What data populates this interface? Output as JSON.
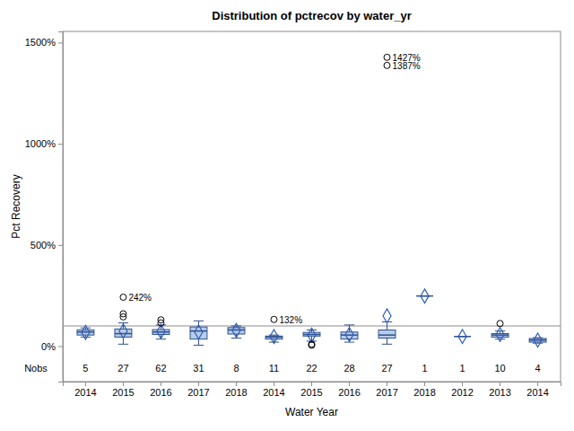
{
  "chart_data": {
    "type": "box",
    "title": "Distribution of pctrecov by water_yr",
    "x_label": "Water Year",
    "y_label": "Pct Recovery",
    "categories": [
      "2014",
      "2015",
      "2016",
      "2017",
      "2018",
      "2014",
      "2015",
      "2016",
      "2017",
      "2018",
      "2012",
      "2013",
      "2014"
    ],
    "ylim": [
      -175,
      1555
    ],
    "yticks": [
      {
        "value": 0,
        "label": "0%"
      },
      {
        "value": 500,
        "label": "500%"
      },
      {
        "value": 1000,
        "label": "1000%"
      },
      {
        "value": 1500,
        "label": "1500%"
      }
    ],
    "color": "#b8cde9",
    "reference_lines": [
      100
    ],
    "nobs_label": "Nobs",
    "nobs": [
      5,
      27,
      62,
      31,
      8,
      11,
      22,
      28,
      27,
      1,
      1,
      10,
      4
    ],
    "boxes": [
      {
        "min": 45,
        "q1": 55,
        "median": 70,
        "q3": 80,
        "max": 90,
        "mean": 68
      },
      {
        "min": 10,
        "q1": 45,
        "median": 62,
        "q3": 85,
        "max": 115,
        "mean": 75,
        "outliers": [
          145,
          160,
          242
        ],
        "outlier_labels": [
          null,
          null,
          "242%"
        ]
      },
      {
        "min": 35,
        "q1": 58,
        "median": 70,
        "q3": 82,
        "max": 105,
        "mean": 72,
        "outliers": [
          115,
          130
        ]
      },
      {
        "min": 5,
        "q1": 35,
        "median": 75,
        "q3": 95,
        "max": 125,
        "mean": 70
      },
      {
        "min": 40,
        "q1": 60,
        "median": 80,
        "q3": 92,
        "max": 100,
        "mean": 78
      },
      {
        "min": 20,
        "q1": 35,
        "median": 45,
        "q3": 50,
        "max": 55,
        "mean": 48,
        "outliers": [
          132
        ],
        "outlier_labels": [
          "132%"
        ]
      },
      {
        "min": 25,
        "q1": 50,
        "median": 58,
        "q3": 68,
        "max": 80,
        "mean": 55,
        "outliers": [
          5,
          10
        ]
      },
      {
        "min": 20,
        "q1": 35,
        "median": 55,
        "q3": 70,
        "max": 105,
        "mean": 58
      },
      {
        "min": 10,
        "q1": 40,
        "median": 55,
        "q3": 80,
        "max": 120,
        "mean": 150,
        "outliers": [
          1387,
          1427
        ],
        "outlier_labels": [
          "1387%",
          "1427%"
        ]
      },
      {
        "min": 248,
        "q1": 248,
        "median": 248,
        "q3": 248,
        "max": 248,
        "mean": 248
      },
      {
        "min": 48,
        "q1": 48,
        "median": 48,
        "q3": 48,
        "max": 48,
        "mean": 48
      },
      {
        "min": 35,
        "q1": 45,
        "median": 55,
        "q3": 62,
        "max": 75,
        "mean": 58,
        "outliers": [
          112
        ]
      },
      {
        "min": 15,
        "q1": 20,
        "median": 30,
        "q3": 38,
        "max": 42,
        "mean": 30
      }
    ]
  }
}
